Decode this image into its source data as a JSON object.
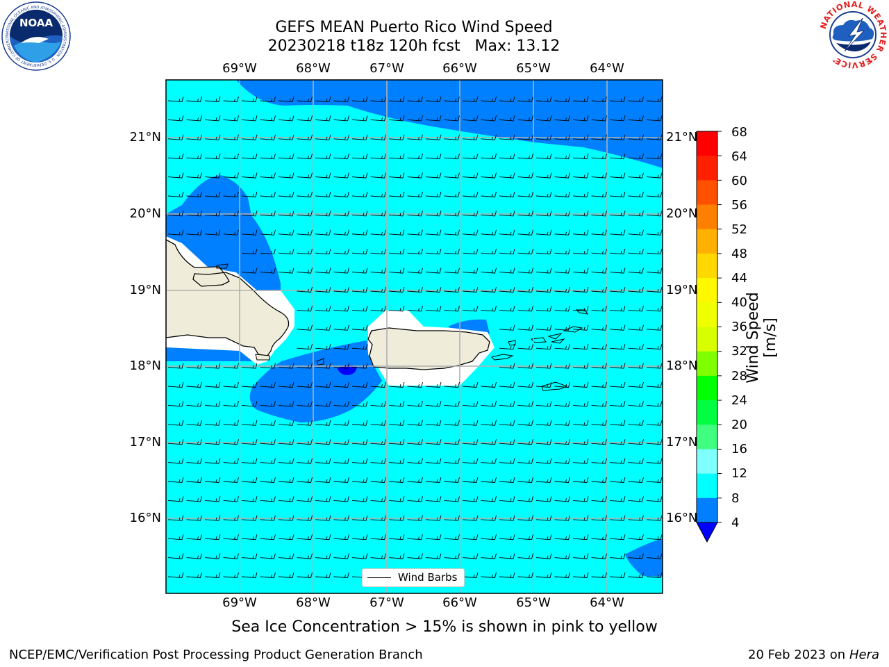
{
  "header": {
    "title": "GEFS MEAN Puerto Rico Wind Speed",
    "subtitle": "20230218 t18z 120h fcst   Max: 13.12"
  },
  "logos": {
    "left": {
      "name": "NOAA",
      "ring_text": "NATIONAL OCEANIC AND ATMOSPHERIC ADMINISTRATION · U.S. DEPARTMENT OF COMMERCE"
    },
    "right": {
      "ring_text": "NATIONAL WEATHER SERVICE"
    }
  },
  "map": {
    "lon_labels": [
      "69°W",
      "68°W",
      "67°W",
      "66°W",
      "65°W",
      "64°W"
    ],
    "lat_labels": [
      "21°N",
      "20°N",
      "19°N",
      "18°N",
      "17°N",
      "16°N"
    ],
    "colors": {
      "ocean_8_12": "#00ffff",
      "wind_4_8": "#0080ff",
      "wind_below_4": "#0000ff",
      "land": "#efedd9",
      "coast_halo": "#ffffff",
      "grid": "#b0b0b0"
    },
    "wind_barbs": "uniform easterly trade wind barbs, ~10–20 kt"
  },
  "colorbar": {
    "label": "Wind Speed [m/s]",
    "ticks": [
      "68",
      "64",
      "60",
      "56",
      "52",
      "48",
      "44",
      "40",
      "36",
      "32",
      "28",
      "24",
      "20",
      "16",
      "12",
      "8",
      "4"
    ],
    "colors_top_to_bottom": [
      "#ff0000",
      "#ff2000",
      "#ff5000",
      "#ff8000",
      "#ffb000",
      "#ffd800",
      "#fff800",
      "#f0ff00",
      "#d8ff00",
      "#c0ff00",
      "#80ff00",
      "#00ff00",
      "#00ff40",
      "#40ff80",
      "#80ffff",
      "#40ffff",
      "#00ffff",
      "#0080ff"
    ],
    "extend_below": "#0000ff"
  },
  "legend": {
    "label": "Wind Barbs"
  },
  "note": "Sea Ice Concentration > 15% is shown in pink to yellow",
  "footer": {
    "left": "NCEP/EMC/Verification Post Processing Product Generation Branch",
    "date": "20 Feb 2023 on",
    "machine": "Hera"
  }
}
